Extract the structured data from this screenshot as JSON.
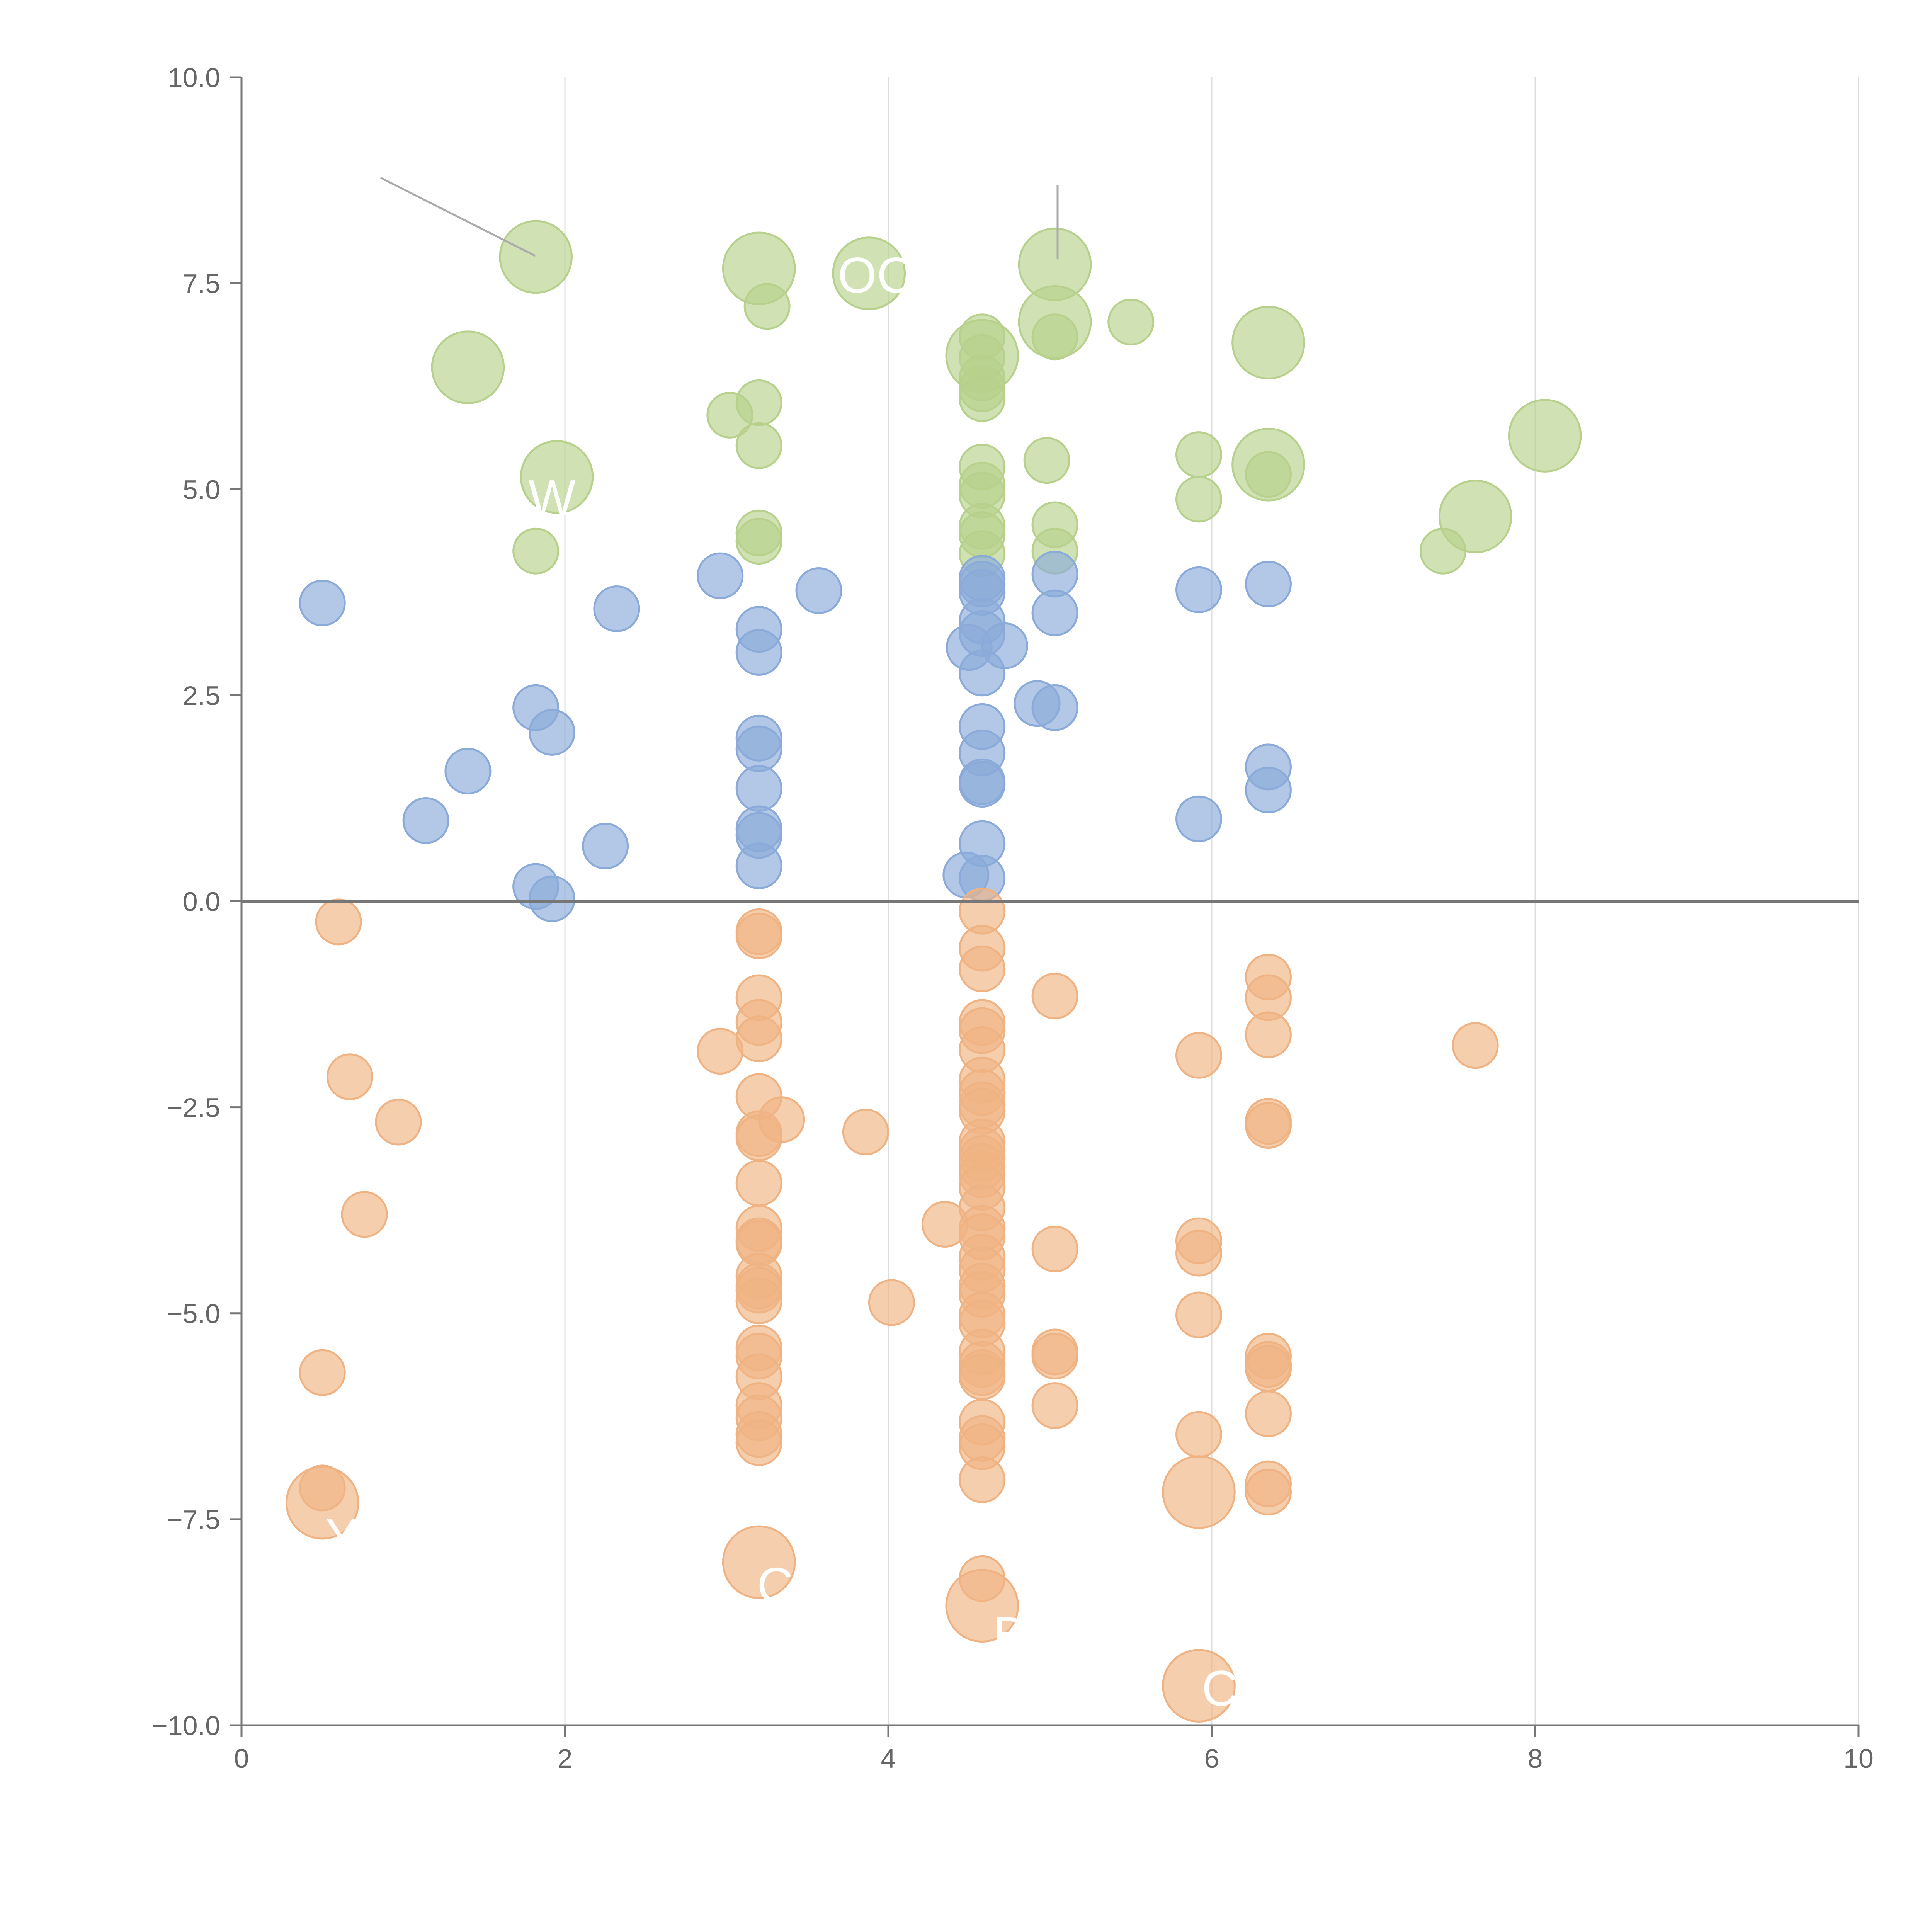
{
  "chart_data": {
    "type": "scatter",
    "title": "",
    "xlabel": "",
    "ylabel": "",
    "xlim": [
      0,
      10
    ],
    "ylim": [
      -10,
      10
    ],
    "x_ticks": [
      "0",
      "2",
      "4",
      "6",
      "8",
      "10"
    ],
    "y_ticks": [
      "10.0",
      "7.5",
      "5.0",
      "2.5",
      "0.0",
      "−2.5",
      "−5.0",
      "−7.5",
      "−10.0"
    ],
    "grid": "vertical gridlines at x ticks",
    "zero_line": 0,
    "colors": {
      "large": "#b7d18c",
      "positive": "#8aaad9",
      "negative": "#efb383"
    },
    "series": [
      {
        "name": "large-positive",
        "color": "#b7d18c",
        "points": [
          {
            "x": 1.82,
            "y": 7.82,
            "r": 1.6
          },
          {
            "x": 1.4,
            "y": 6.48,
            "r": 1.6
          },
          {
            "x": 1.95,
            "y": 5.15,
            "r": 1.6
          },
          {
            "x": 3.2,
            "y": 7.68,
            "r": 1.6
          },
          {
            "x": 3.88,
            "y": 7.62,
            "r": 1.6
          },
          {
            "x": 4.58,
            "y": 6.62,
            "r": 1.6
          },
          {
            "x": 5.03,
            "y": 7.73,
            "r": 1.6
          },
          {
            "x": 5.03,
            "y": 7.03,
            "r": 1.6
          },
          {
            "x": 6.35,
            "y": 6.78,
            "r": 1.6
          },
          {
            "x": 6.35,
            "y": 5.3,
            "r": 1.6
          },
          {
            "x": 7.63,
            "y": 4.67,
            "r": 1.6
          },
          {
            "x": 8.06,
            "y": 5.65,
            "r": 1.6
          },
          {
            "x": 1.82,
            "y": 4.25,
            "r": 1
          },
          {
            "x": 3.02,
            "y": 5.9,
            "r": 1
          },
          {
            "x": 3.2,
            "y": 6.05,
            "r": 1
          },
          {
            "x": 3.25,
            "y": 7.22,
            "r": 1
          },
          {
            "x": 3.2,
            "y": 5.53,
            "r": 1
          },
          {
            "x": 3.2,
            "y": 4.47,
            "r": 1
          },
          {
            "x": 3.2,
            "y": 4.37,
            "r": 1
          },
          {
            "x": 4.58,
            "y": 6.85,
            "r": 1
          },
          {
            "x": 4.58,
            "y": 6.6,
            "r": 1
          },
          {
            "x": 4.58,
            "y": 6.35,
            "r": 1
          },
          {
            "x": 4.58,
            "y": 6.22,
            "r": 1
          },
          {
            "x": 4.58,
            "y": 6.1,
            "r": 1
          },
          {
            "x": 4.58,
            "y": 5.27,
            "r": 1
          },
          {
            "x": 4.58,
            "y": 5.05,
            "r": 1
          },
          {
            "x": 4.58,
            "y": 4.93,
            "r": 1
          },
          {
            "x": 4.58,
            "y": 4.55,
            "r": 1
          },
          {
            "x": 4.58,
            "y": 4.45,
            "r": 1
          },
          {
            "x": 4.58,
            "y": 4.22,
            "r": 1
          },
          {
            "x": 5.03,
            "y": 6.85,
            "r": 1
          },
          {
            "x": 5.5,
            "y": 7.03,
            "r": 1
          },
          {
            "x": 4.98,
            "y": 5.35,
            "r": 1
          },
          {
            "x": 5.03,
            "y": 4.57,
            "r": 1
          },
          {
            "x": 5.03,
            "y": 4.25,
            "r": 1
          },
          {
            "x": 5.92,
            "y": 5.42,
            "r": 1
          },
          {
            "x": 5.92,
            "y": 4.88,
            "r": 1
          },
          {
            "x": 6.35,
            "y": 5.18,
            "r": 1
          },
          {
            "x": 7.43,
            "y": 4.25,
            "r": 1
          }
        ]
      },
      {
        "name": "positive",
        "color": "#8aaad9",
        "points": [
          {
            "x": 0.5,
            "y": 3.62,
            "r": 1
          },
          {
            "x": 2.32,
            "y": 3.55,
            "r": 1
          },
          {
            "x": 2.96,
            "y": 3.95,
            "r": 1
          },
          {
            "x": 3.57,
            "y": 3.77,
            "r": 1
          },
          {
            "x": 1.82,
            "y": 2.35,
            "r": 1
          },
          {
            "x": 1.92,
            "y": 2.05,
            "r": 1
          },
          {
            "x": 1.4,
            "y": 1.58,
            "r": 1
          },
          {
            "x": 1.14,
            "y": 0.98,
            "r": 1
          },
          {
            "x": 2.25,
            "y": 0.67,
            "r": 1
          },
          {
            "x": 1.82,
            "y": 0.18,
            "r": 1
          },
          {
            "x": 1.92,
            "y": 0.03,
            "r": 1
          },
          {
            "x": 3.2,
            "y": 3.3,
            "r": 1
          },
          {
            "x": 3.2,
            "y": 3.02,
            "r": 1
          },
          {
            "x": 3.2,
            "y": 1.98,
            "r": 1
          },
          {
            "x": 3.2,
            "y": 1.85,
            "r": 1
          },
          {
            "x": 3.2,
            "y": 1.37,
            "r": 1
          },
          {
            "x": 3.2,
            "y": 0.88,
            "r": 1
          },
          {
            "x": 3.2,
            "y": 0.8,
            "r": 1
          },
          {
            "x": 3.2,
            "y": 0.43,
            "r": 1
          },
          {
            "x": 4.58,
            "y": 3.92,
            "r": 1
          },
          {
            "x": 4.58,
            "y": 3.85,
            "r": 1
          },
          {
            "x": 4.58,
            "y": 3.75,
            "r": 1
          },
          {
            "x": 4.58,
            "y": 3.4,
            "r": 1
          },
          {
            "x": 4.58,
            "y": 3.25,
            "r": 1
          },
          {
            "x": 4.5,
            "y": 3.08,
            "r": 1
          },
          {
            "x": 4.72,
            "y": 3.1,
            "r": 1
          },
          {
            "x": 4.58,
            "y": 2.77,
            "r": 1
          },
          {
            "x": 4.58,
            "y": 2.12,
            "r": 1
          },
          {
            "x": 4.58,
            "y": 1.8,
            "r": 1
          },
          {
            "x": 4.58,
            "y": 1.45,
            "r": 1
          },
          {
            "x": 4.58,
            "y": 1.42,
            "r": 1
          },
          {
            "x": 4.58,
            "y": 0.7,
            "r": 1
          },
          {
            "x": 4.48,
            "y": 0.32,
            "r": 1
          },
          {
            "x": 4.58,
            "y": 0.28,
            "r": 1
          },
          {
            "x": 4.92,
            "y": 2.4,
            "r": 1
          },
          {
            "x": 5.03,
            "y": 2.35,
            "r": 1
          },
          {
            "x": 5.03,
            "y": 3.97,
            "r": 1
          },
          {
            "x": 5.03,
            "y": 3.5,
            "r": 1
          },
          {
            "x": 5.92,
            "y": 3.78,
            "r": 1
          },
          {
            "x": 5.92,
            "y": 1.0,
            "r": 1
          },
          {
            "x": 6.35,
            "y": 3.85,
            "r": 1
          },
          {
            "x": 6.35,
            "y": 1.63,
            "r": 1
          },
          {
            "x": 6.35,
            "y": 1.35,
            "r": 1
          }
        ]
      },
      {
        "name": "negative",
        "color": "#efb383",
        "points": [
          {
            "x": 0.6,
            "y": -0.25,
            "r": 1
          },
          {
            "x": 0.67,
            "y": -2.13,
            "r": 1
          },
          {
            "x": 0.97,
            "y": -2.68,
            "r": 1
          },
          {
            "x": 0.76,
            "y": -3.8,
            "r": 1
          },
          {
            "x": 0.5,
            "y": -5.72,
            "r": 1
          },
          {
            "x": 0.5,
            "y": -7.12,
            "r": 1
          },
          {
            "x": 2.96,
            "y": -1.82,
            "r": 1
          },
          {
            "x": 3.2,
            "y": -0.37,
            "r": 1
          },
          {
            "x": 3.2,
            "y": -0.42,
            "r": 1
          },
          {
            "x": 3.2,
            "y": -1.17,
            "r": 1
          },
          {
            "x": 3.2,
            "y": -1.47,
            "r": 1
          },
          {
            "x": 3.2,
            "y": -1.67,
            "r": 1
          },
          {
            "x": 3.2,
            "y": -2.37,
            "r": 1
          },
          {
            "x": 3.2,
            "y": -2.82,
            "r": 1
          },
          {
            "x": 3.2,
            "y": -2.87,
            "r": 1
          },
          {
            "x": 3.34,
            "y": -2.65,
            "r": 1
          },
          {
            "x": 3.2,
            "y": -3.42,
            "r": 1
          },
          {
            "x": 3.2,
            "y": -3.97,
            "r": 1
          },
          {
            "x": 3.2,
            "y": -4.12,
            "r": 1
          },
          {
            "x": 3.2,
            "y": -4.15,
            "r": 1
          },
          {
            "x": 3.2,
            "y": -4.55,
            "r": 1
          },
          {
            "x": 3.2,
            "y": -4.67,
            "r": 1
          },
          {
            "x": 3.2,
            "y": -4.72,
            "r": 1
          },
          {
            "x": 3.2,
            "y": -4.85,
            "r": 1
          },
          {
            "x": 3.2,
            "y": -5.42,
            "r": 1
          },
          {
            "x": 3.2,
            "y": -5.52,
            "r": 1
          },
          {
            "x": 3.2,
            "y": -5.77,
            "r": 1
          },
          {
            "x": 3.2,
            "y": -6.12,
            "r": 1
          },
          {
            "x": 3.2,
            "y": -6.27,
            "r": 1
          },
          {
            "x": 3.2,
            "y": -6.47,
            "r": 1
          },
          {
            "x": 3.2,
            "y": -6.57,
            "r": 1
          },
          {
            "x": 3.86,
            "y": -2.8,
            "r": 1
          },
          {
            "x": 4.02,
            "y": -4.87,
            "r": 1
          },
          {
            "x": 4.35,
            "y": -3.92,
            "r": 1
          },
          {
            "x": 4.58,
            "y": -0.12,
            "r": 1
          },
          {
            "x": 4.58,
            "y": -0.57,
            "r": 1
          },
          {
            "x": 4.58,
            "y": -0.82,
            "r": 1
          },
          {
            "x": 4.58,
            "y": -1.47,
            "r": 1
          },
          {
            "x": 4.58,
            "y": -1.57,
            "r": 1
          },
          {
            "x": 4.58,
            "y": -1.8,
            "r": 1
          },
          {
            "x": 4.58,
            "y": -2.17,
            "r": 1
          },
          {
            "x": 4.58,
            "y": -2.32,
            "r": 1
          },
          {
            "x": 4.58,
            "y": -2.47,
            "r": 1
          },
          {
            "x": 4.58,
            "y": -2.55,
            "r": 1
          },
          {
            "x": 4.58,
            "y": -2.92,
            "r": 1
          },
          {
            "x": 4.58,
            "y": -3.02,
            "r": 1
          },
          {
            "x": 4.58,
            "y": -3.12,
            "r": 1
          },
          {
            "x": 4.58,
            "y": -3.22,
            "r": 1
          },
          {
            "x": 4.58,
            "y": -3.32,
            "r": 1
          },
          {
            "x": 4.58,
            "y": -3.47,
            "r": 1
          },
          {
            "x": 4.58,
            "y": -3.72,
            "r": 1
          },
          {
            "x": 4.58,
            "y": -3.97,
            "r": 1
          },
          {
            "x": 4.58,
            "y": -4.07,
            "r": 1
          },
          {
            "x": 4.58,
            "y": -4.32,
            "r": 1
          },
          {
            "x": 4.58,
            "y": -4.47,
            "r": 1
          },
          {
            "x": 4.58,
            "y": -4.67,
            "r": 1
          },
          {
            "x": 4.58,
            "y": -4.77,
            "r": 1
          },
          {
            "x": 4.58,
            "y": -5.02,
            "r": 1
          },
          {
            "x": 4.58,
            "y": -5.12,
            "r": 1
          },
          {
            "x": 4.58,
            "y": -5.47,
            "r": 1
          },
          {
            "x": 4.58,
            "y": -5.62,
            "r": 1
          },
          {
            "x": 4.58,
            "y": -5.72,
            "r": 1
          },
          {
            "x": 4.58,
            "y": -5.77,
            "r": 1
          },
          {
            "x": 4.58,
            "y": -6.32,
            "r": 1
          },
          {
            "x": 4.58,
            "y": -6.52,
            "r": 1
          },
          {
            "x": 4.58,
            "y": -6.62,
            "r": 1
          },
          {
            "x": 4.58,
            "y": -7.02,
            "r": 1
          },
          {
            "x": 4.58,
            "y": -8.22,
            "r": 1
          },
          {
            "x": 5.03,
            "y": -1.15,
            "r": 1
          },
          {
            "x": 5.03,
            "y": -4.22,
            "r": 1
          },
          {
            "x": 5.03,
            "y": -5.47,
            "r": 1
          },
          {
            "x": 5.03,
            "y": -5.52,
            "r": 1
          },
          {
            "x": 5.03,
            "y": -6.12,
            "r": 1
          },
          {
            "x": 5.92,
            "y": -1.87,
            "r": 1
          },
          {
            "x": 5.92,
            "y": -4.12,
            "r": 1
          },
          {
            "x": 5.92,
            "y": -4.27,
            "r": 1
          },
          {
            "x": 5.92,
            "y": -5.02,
            "r": 1
          },
          {
            "x": 5.92,
            "y": -6.47,
            "r": 1
          },
          {
            "x": 6.35,
            "y": -0.92,
            "r": 1
          },
          {
            "x": 6.35,
            "y": -1.17,
            "r": 1
          },
          {
            "x": 6.35,
            "y": -1.62,
            "r": 1
          },
          {
            "x": 6.35,
            "y": -2.67,
            "r": 1
          },
          {
            "x": 6.35,
            "y": -2.72,
            "r": 1
          },
          {
            "x": 6.35,
            "y": -5.52,
            "r": 1
          },
          {
            "x": 6.35,
            "y": -5.62,
            "r": 1
          },
          {
            "x": 6.35,
            "y": -5.67,
            "r": 1
          },
          {
            "x": 6.35,
            "y": -6.22,
            "r": 1
          },
          {
            "x": 6.35,
            "y": -7.07,
            "r": 1
          },
          {
            "x": 6.35,
            "y": -7.17,
            "r": 1
          },
          {
            "x": 7.63,
            "y": -1.75,
            "r": 1
          },
          {
            "x": 0.5,
            "y": -7.3,
            "r": 1.6
          },
          {
            "x": 3.2,
            "y": -8.02,
            "r": 1.6
          },
          {
            "x": 4.58,
            "y": -8.55,
            "r": 1.6
          },
          {
            "x": 5.92,
            "y": -7.17,
            "r": 1.6
          },
          {
            "x": 5.92,
            "y": -9.52,
            "r": 1.6
          }
        ]
      }
    ],
    "point_labels": [
      {
        "text": "OC",
        "x": 3.92,
        "y": 7.55
      },
      {
        "text": "W",
        "x": 1.92,
        "y": 4.85
      },
      {
        "text": "Y",
        "x": 0.62,
        "y": -7.75
      },
      {
        "text": "C",
        "x": 3.3,
        "y": -8.35
      },
      {
        "text": "B",
        "x": 4.75,
        "y": -8.95
      },
      {
        "text": "C",
        "x": 6.05,
        "y": -9.6
      }
    ]
  }
}
